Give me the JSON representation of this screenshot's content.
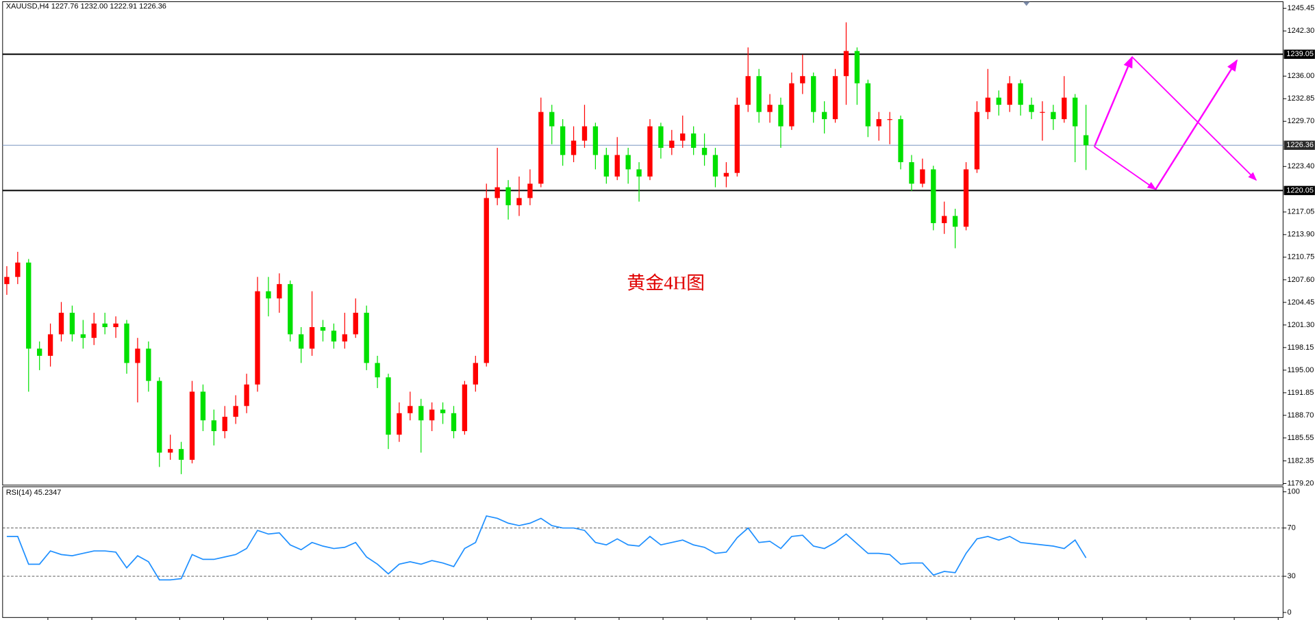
{
  "chart_data": [
    {
      "type": "candlestick",
      "title": "XAUUSD,H4  1227.76 1232.00 1222.91 1226.36",
      "annotation": "黄金4H图",
      "up_color": "#ff0000",
      "down_color": "#00e000",
      "open": [
        1207,
        1208,
        1210,
        1198,
        1197,
        1200,
        1203,
        1200,
        1199.5,
        1201.5,
        1201,
        1201.5,
        1196,
        1198,
        1193.5,
        1183.5,
        1184,
        1182.5,
        1192,
        1188,
        1186.5,
        1188.5,
        1190,
        1193,
        1206,
        1205,
        1207,
        1200,
        1198,
        1201,
        1200.5,
        1199,
        1200,
        1203,
        1196,
        1194,
        1186,
        1189,
        1190,
        1188,
        1189.5,
        1189,
        1186.5,
        1193,
        1196,
        1219,
        1220.5,
        1218,
        1219,
        1221,
        1231,
        1229,
        1225,
        1227,
        1229,
        1225,
        1222,
        1225,
        1223,
        1222,
        1229,
        1226,
        1227,
        1228,
        1226,
        1225,
        1222,
        1222.5,
        1232,
        1236,
        1231,
        1232,
        1229,
        1235,
        1236,
        1231,
        1230,
        1236,
        1239.5,
        1235,
        1229,
        1230,
        1230,
        1224,
        1221,
        1223,
        1215.5,
        1216.5,
        1215,
        1223,
        1231,
        1233,
        1232,
        1235,
        1232,
        1231,
        1231,
        1230,
        1233,
        1227.76
      ],
      "high": [
        1209.5,
        1211.5,
        1210.5,
        1199,
        1201.5,
        1204.5,
        1204,
        1202,
        1203,
        1203,
        1202.5,
        1202,
        1199.5,
        1199,
        1194,
        1186,
        1185,
        1193.5,
        1193,
        1189.5,
        1190,
        1191.5,
        1194.5,
        1208,
        1208,
        1208.5,
        1207.5,
        1201,
        1206,
        1202,
        1201.5,
        1203,
        1205,
        1204,
        1197,
        1194.5,
        1190.5,
        1192,
        1191,
        1190.5,
        1190.5,
        1190,
        1193.5,
        1197,
        1221,
        1226,
        1221.5,
        1222,
        1223,
        1233,
        1232,
        1230,
        1229,
        1232,
        1229.5,
        1226,
        1227.5,
        1226,
        1224,
        1230,
        1229.5,
        1228.5,
        1230.5,
        1229,
        1228,
        1226,
        1224,
        1233,
        1240,
        1237,
        1233.5,
        1233,
        1236.5,
        1239,
        1236.5,
        1232.5,
        1237,
        1243.5,
        1240,
        1235.5,
        1231,
        1231,
        1230.5,
        1225,
        1224.5,
        1223.5,
        1218.5,
        1217.5,
        1224,
        1232.5,
        1237,
        1234,
        1236,
        1235.5,
        1233,
        1232.5,
        1232,
        1236,
        1233.5,
        1232
      ],
      "low": [
        1205.5,
        1207,
        1192,
        1195,
        1195.5,
        1199,
        1199,
        1198,
        1198.5,
        1200,
        1199.5,
        1194.5,
        1190.5,
        1192,
        1181.5,
        1182.5,
        1180.5,
        1182,
        1186.5,
        1184.5,
        1185.5,
        1187.5,
        1189,
        1192,
        1202.5,
        1203,
        1199,
        1196,
        1197,
        1199,
        1198,
        1198,
        1199.5,
        1195,
        1192.5,
        1184,
        1185,
        1188,
        1183.5,
        1186.5,
        1187.5,
        1185.5,
        1186,
        1192,
        1195.5,
        1218,
        1216,
        1216.5,
        1218,
        1220.5,
        1226.5,
        1223.5,
        1224,
        1226,
        1223,
        1221,
        1221.5,
        1221,
        1218.5,
        1221.5,
        1224.5,
        1225,
        1226,
        1225,
        1223.5,
        1220.5,
        1220.5,
        1222,
        1231,
        1229.5,
        1229.5,
        1226,
        1228.5,
        1233.5,
        1229.5,
        1228,
        1229.5,
        1232,
        1232,
        1227.5,
        1227,
        1226.5,
        1223,
        1220,
        1220.5,
        1214.5,
        1214,
        1212,
        1214.5,
        1222.5,
        1230,
        1230.5,
        1231,
        1230.5,
        1230,
        1227,
        1228.5,
        1229.5,
        1224,
        1222.91
      ],
      "close": [
        1208,
        1210,
        1198,
        1197,
        1200,
        1203,
        1200,
        1199.5,
        1201.5,
        1201,
        1201.5,
        1196,
        1198,
        1193.5,
        1183.5,
        1184,
        1182.5,
        1192,
        1188,
        1186.5,
        1188.5,
        1190,
        1193,
        1206,
        1205,
        1207,
        1200,
        1198,
        1201,
        1200.5,
        1199,
        1200,
        1203,
        1196,
        1194,
        1186,
        1189,
        1190,
        1188,
        1189.5,
        1189,
        1186.5,
        1193,
        1196,
        1219,
        1220.5,
        1218,
        1219,
        1221,
        1231,
        1229,
        1225,
        1227,
        1229,
        1225,
        1222,
        1225,
        1223,
        1222,
        1229,
        1226,
        1227,
        1228,
        1226,
        1225,
        1222,
        1222.5,
        1232,
        1236,
        1231,
        1232,
        1229,
        1235,
        1236,
        1231,
        1230,
        1236,
        1239.5,
        1235,
        1229,
        1230,
        1230,
        1224,
        1221,
        1223,
        1215.5,
        1216.5,
        1215,
        1223,
        1231,
        1233,
        1232,
        1235,
        1232,
        1231,
        1231,
        1230,
        1233,
        1229,
        1226.36
      ],
      "ylim": [
        1178.97,
        1246.38
      ],
      "yticks": [
        {
          "value": 1179.2,
          "label": "1179.20"
        },
        {
          "value": 1182.35,
          "label": "1182.35"
        },
        {
          "value": 1185.55,
          "label": "1185.55"
        },
        {
          "value": 1188.7,
          "label": "1188.70"
        },
        {
          "value": 1191.85,
          "label": "1191.85"
        },
        {
          "value": 1195,
          "label": "1195.00"
        },
        {
          "value": 1198.15,
          "label": "1198.15"
        },
        {
          "value": 1201.3,
          "label": "1201.30"
        },
        {
          "value": 1204.45,
          "label": "1204.45"
        },
        {
          "value": 1207.6,
          "label": "1207.60"
        },
        {
          "value": 1210.75,
          "label": "1210.75"
        },
        {
          "value": 1213.9,
          "label": "1213.90"
        },
        {
          "value": 1217.05,
          "label": "1217.05"
        },
        {
          "value": 1223.4,
          "label": "1223.40"
        },
        {
          "value": 1229.7,
          "label": "1229.70"
        },
        {
          "value": 1232.85,
          "label": "1232.85"
        },
        {
          "value": 1236,
          "label": "1236.00"
        },
        {
          "value": 1242.3,
          "label": "1242.30"
        },
        {
          "value": 1245.45,
          "label": "1245.45"
        }
      ],
      "levels": [
        {
          "value": 1239.05,
          "label": "1239.05",
          "color": "#000000"
        },
        {
          "value": 1220.05,
          "label": "1220.05",
          "color": "#000000"
        },
        {
          "value": 1226.36,
          "label": "1226.36",
          "color": "#7a96c0"
        }
      ]
    },
    {
      "type": "line",
      "title": "RSI(14) 45.2347",
      "color": "#1e8fff",
      "values": [
        63,
        63,
        40,
        40,
        51,
        48,
        47,
        49,
        51,
        51,
        50,
        37,
        47,
        42,
        27,
        27,
        28,
        48,
        44,
        44,
        46,
        48,
        53,
        68,
        65,
        66,
        56,
        52,
        58,
        55,
        53,
        54,
        58,
        46,
        40,
        32,
        40,
        42,
        40,
        43,
        41,
        38,
        53,
        58,
        80,
        78,
        74,
        72,
        74,
        78,
        72,
        70,
        70,
        68,
        58,
        56,
        61,
        56,
        55,
        63,
        56,
        58,
        60,
        56,
        54,
        49,
        50,
        62,
        70,
        58,
        59,
        53,
        63,
        64,
        55,
        53,
        58,
        65,
        57,
        49,
        49,
        48,
        40,
        41,
        41,
        31,
        34,
        33,
        49,
        61,
        63,
        60,
        63,
        58,
        57,
        56,
        55,
        53,
        60,
        45.2347
      ],
      "ylim": [
        0,
        100
      ],
      "yticks": [
        0,
        30,
        70,
        100
      ]
    }
  ]
}
